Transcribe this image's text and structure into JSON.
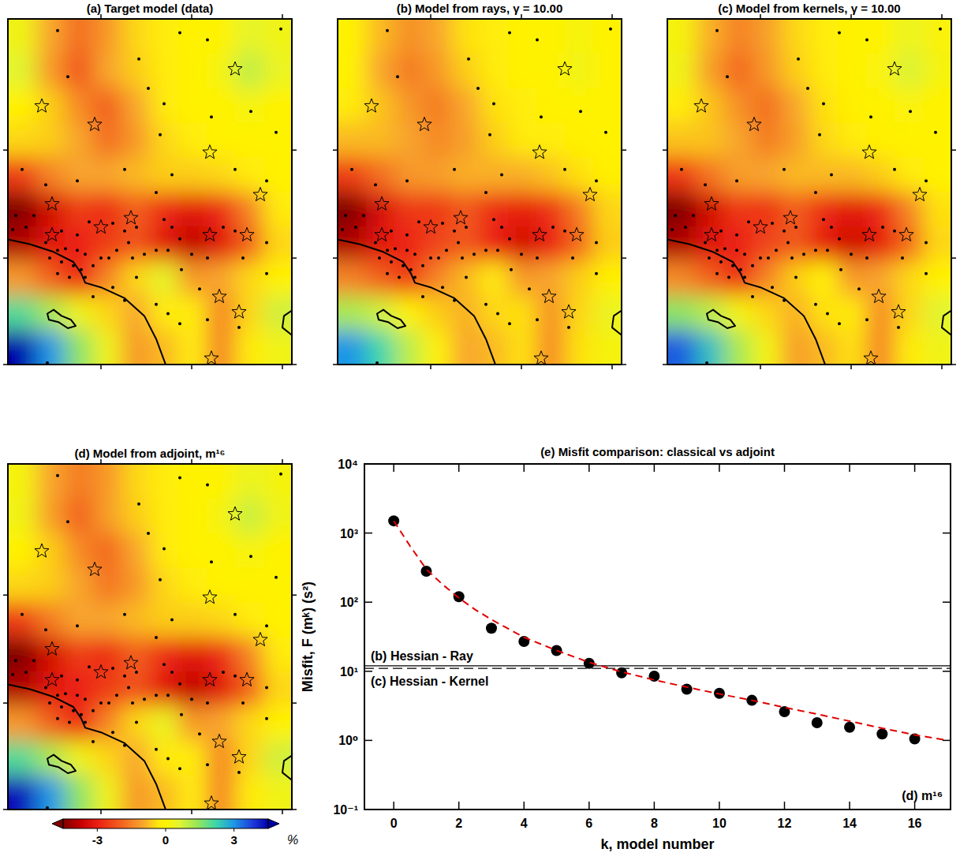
{
  "chart_data": [
    {
      "type": "heatmap",
      "title": "(a) Target model (data)",
      "cells": [
        [
          0.3,
          -1.0,
          -1.8,
          -1.2,
          -0.5,
          -0.2,
          0,
          0,
          0.5,
          0.3
        ],
        [
          0.6,
          -1.2,
          -2.2,
          -1.0,
          -0.6,
          -0.3,
          0,
          0.2,
          1.0,
          0.4
        ],
        [
          0,
          -0.6,
          -1.4,
          -2.0,
          -1.0,
          -0.3,
          0,
          0,
          0.2,
          0
        ],
        [
          -0.5,
          -0.6,
          -1.0,
          -1.8,
          -1.2,
          -0.5,
          -0.2,
          0,
          0,
          0
        ],
        [
          -2.5,
          -1.5,
          -1.0,
          -1.0,
          -0.8,
          -0.6,
          -0.6,
          -0.5,
          -0.3,
          0
        ],
        [
          -4.5,
          -3.5,
          -2.5,
          -2.8,
          -2.0,
          -2.8,
          -3.2,
          -2.8,
          -1.5,
          -0.3
        ],
        [
          -4.0,
          -3.2,
          -3.0,
          -2.5,
          -2.2,
          -3.2,
          -3.8,
          -3.2,
          -2.0,
          -0.5
        ],
        [
          -1.2,
          -2.0,
          -3.0,
          -1.5,
          -0.5,
          0.5,
          -1.2,
          -1.0,
          -0.5,
          0
        ],
        [
          2.0,
          1.2,
          0.3,
          -0.5,
          -1.0,
          -0.3,
          -0.2,
          -1.5,
          -0.5,
          0.8
        ],
        [
          4.5,
          3.0,
          1.5,
          0.3,
          -1.2,
          -0.8,
          -0.3,
          -1.5,
          -0.3,
          0.3
        ]
      ]
    },
    {
      "type": "heatmap",
      "title": "(b) Model from rays, γ = 10.00",
      "cells": [
        [
          0,
          -0.8,
          -1.3,
          -1.0,
          -0.4,
          -0.2,
          0,
          0,
          0.2,
          0
        ],
        [
          0,
          -1.0,
          -1.6,
          -1.2,
          -0.6,
          -0.3,
          0,
          0,
          0.3,
          0
        ],
        [
          -0.3,
          -0.7,
          -1.2,
          -1.6,
          -1.0,
          -0.4,
          -0.2,
          0,
          0,
          0
        ],
        [
          -0.8,
          -0.8,
          -1.0,
          -1.4,
          -1.1,
          -0.6,
          -0.3,
          -0.2,
          -0.1,
          0
        ],
        [
          -2.5,
          -1.8,
          -1.2,
          -1.1,
          -0.9,
          -0.9,
          -0.9,
          -0.7,
          -0.4,
          -0.1
        ],
        [
          -4.5,
          -3.4,
          -2.6,
          -2.6,
          -2.1,
          -2.8,
          -3.1,
          -2.7,
          -1.6,
          -0.5
        ],
        [
          -4.0,
          -3.2,
          -2.9,
          -2.4,
          -2.1,
          -3.0,
          -3.5,
          -3.0,
          -1.9,
          -0.6
        ],
        [
          -1.5,
          -2.0,
          -2.6,
          -1.5,
          -0.8,
          -0.3,
          -1.2,
          -1.0,
          -0.6,
          -0.1
        ],
        [
          1.2,
          0.8,
          0,
          -0.6,
          -0.9,
          -0.5,
          -0.4,
          -1.3,
          -0.5,
          0.4
        ],
        [
          3.0,
          2.2,
          1.0,
          0,
          -1.0,
          -0.8,
          -0.4,
          -1.4,
          -0.4,
          0.2
        ]
      ]
    },
    {
      "type": "heatmap",
      "title": "(c) Model from kernels, γ = 10.00",
      "cells": [
        [
          0.2,
          -0.9,
          -1.5,
          -1.1,
          -0.5,
          -0.2,
          0,
          0,
          0.4,
          0.1
        ],
        [
          0.3,
          -1.1,
          -1.9,
          -1.2,
          -0.6,
          -0.3,
          0,
          0.1,
          0.7,
          0.2
        ],
        [
          -0.2,
          -0.7,
          -1.3,
          -1.8,
          -1.0,
          -0.4,
          -0.1,
          0,
          0.1,
          0
        ],
        [
          -0.7,
          -0.7,
          -1.0,
          -1.6,
          -1.1,
          -0.5,
          -0.3,
          -0.1,
          0,
          0
        ],
        [
          -2.6,
          -1.7,
          -1.1,
          -1.0,
          -0.8,
          -0.8,
          -0.8,
          -0.6,
          -0.3,
          0
        ],
        [
          -4.5,
          -3.5,
          -2.6,
          -2.7,
          -2.0,
          -2.8,
          -3.2,
          -2.8,
          -1.5,
          -0.4
        ],
        [
          -4.0,
          -3.2,
          -3.0,
          -2.4,
          -2.1,
          -3.1,
          -3.6,
          -3.1,
          -1.9,
          -0.5
        ],
        [
          -1.4,
          -2.0,
          -2.8,
          -1.5,
          -0.6,
          0,
          -1.2,
          -1.0,
          -0.5,
          0
        ],
        [
          1.5,
          1.0,
          0.2,
          -0.5,
          -0.9,
          -0.4,
          -0.3,
          -1.4,
          -0.5,
          0.6
        ],
        [
          3.5,
          2.5,
          1.2,
          0.2,
          -1.1,
          -0.8,
          -0.4,
          -1.5,
          -0.3,
          0.3
        ]
      ]
    },
    {
      "type": "heatmap",
      "title": "(d) Model from adjoint, m¹⁶",
      "cells": [
        [
          0.2,
          -1.0,
          -1.6,
          -1.2,
          -0.5,
          -0.2,
          0,
          0,
          0.4,
          0.2
        ],
        [
          0.3,
          -1.1,
          -2.0,
          -1.1,
          -0.6,
          -0.3,
          0,
          0.2,
          0.9,
          0.3
        ],
        [
          0,
          -0.6,
          -1.4,
          -1.9,
          -1.0,
          -0.3,
          0,
          0,
          0.2,
          0
        ],
        [
          -0.5,
          -0.6,
          -1.0,
          -1.7,
          -1.2,
          -0.5,
          -0.2,
          0,
          0,
          0
        ],
        [
          -2.5,
          -1.6,
          -1.0,
          -1.0,
          -0.8,
          -0.6,
          -0.6,
          -0.5,
          -0.3,
          0
        ],
        [
          -4.5,
          -3.5,
          -2.5,
          -2.8,
          -2.0,
          -2.8,
          -3.2,
          -2.8,
          -1.5,
          -0.3
        ],
        [
          -4.0,
          -3.2,
          -3.0,
          -2.5,
          -2.2,
          -3.2,
          -3.8,
          -3.2,
          -2.0,
          -0.5
        ],
        [
          -1.2,
          -2.0,
          -3.0,
          -1.5,
          -0.5,
          0.4,
          -1.2,
          -1.0,
          -0.5,
          0
        ],
        [
          2.0,
          1.2,
          0.3,
          -0.5,
          -1.0,
          -0.3,
          -0.2,
          -1.5,
          -0.5,
          0.8
        ],
        [
          4.3,
          3.0,
          1.5,
          0.3,
          -1.2,
          -0.8,
          -0.3,
          -1.5,
          -0.3,
          0.3
        ]
      ]
    },
    {
      "type": "scatter",
      "title": "(e) Misfit comparison: classical vs adjoint",
      "xlabel": "k, model number",
      "ylabel": "Misfit,  F (mᵏ)  (s²)",
      "log": "y",
      "grid": false,
      "xlim": [
        -0.9,
        17.1
      ],
      "xticks": [
        0,
        2,
        4,
        6,
        8,
        10,
        12,
        14,
        16
      ],
      "ylim": [
        0.1,
        10000
      ],
      "yticks": [
        {
          "value": 0.1,
          "label": "10⁻¹"
        },
        {
          "value": 1,
          "label": "10⁰"
        },
        {
          "value": 10,
          "label": "10¹"
        },
        {
          "value": 100,
          "label": "10²"
        },
        {
          "value": 1000,
          "label": "10³"
        },
        {
          "value": 10000,
          "label": "10⁴"
        }
      ],
      "x": [
        0,
        1,
        2,
        3,
        4,
        5,
        6,
        7,
        8,
        9,
        10,
        11,
        12,
        13,
        14,
        15,
        16
      ],
      "series": [
        {
          "type": "scatter",
          "marker": "circle",
          "color": "#000000",
          "values": [
            1500,
            280,
            120,
            42,
            27,
            20,
            13,
            9.5,
            8.5,
            5.5,
            4.8,
            3.8,
            2.6,
            1.8,
            1.55,
            1.24,
            1.05
          ]
        },
        {
          "type": "line",
          "line_style": "dashed",
          "color": "#e00000",
          "x": [
            0,
            0.5,
            1,
            1.5,
            2,
            2.5,
            3,
            4,
            5,
            6,
            7,
            8,
            9,
            10,
            11,
            12,
            13,
            14,
            15,
            16,
            17
          ],
          "values": [
            1500,
            650,
            300,
            180,
            115,
            78,
            56,
            31,
            20,
            13.5,
            9.8,
            7.5,
            5.9,
            4.7,
            3.8,
            3.0,
            2.4,
            1.9,
            1.5,
            1.2,
            1.0
          ]
        }
      ],
      "reference_lines": [
        {
          "label": "(b) Hessian - Ray",
          "value": 12,
          "line_style": "solid"
        },
        {
          "label": "(c) Hessian - Kernel",
          "value": 11,
          "line_style": "dashed"
        }
      ],
      "annotations": [
        "(d) m¹⁶"
      ]
    }
  ],
  "map": {
    "xlim": [
      0,
      360
    ],
    "ylim": [
      0,
      448
    ],
    "xticks": [
      118,
      233,
      348
    ],
    "yticks": [
      0,
      138,
      278
    ],
    "tick_labels": false,
    "stations": {
      "x": [
        63,
        166,
        218,
        253,
        346,
        76,
        178,
        198,
        258,
        308,
        340,
        193,
        288,
        328,
        208,
        148,
        18,
        88,
        48,
        188,
        33,
        10,
        6,
        23,
        68,
        88,
        103,
        133,
        148,
        163,
        198,
        208,
        218,
        273,
        288,
        328,
        48,
        63,
        73,
        88,
        98,
        53,
        68,
        83,
        93,
        63,
        78,
        98,
        108,
        118,
        128,
        138,
        153,
        158,
        173,
        188,
        203,
        233,
        253,
        298,
        220,
        108,
        133,
        148,
        163,
        188,
        203,
        218,
        243,
        253,
        293,
        328,
        50
      ],
      "y": [
        433,
        396,
        430,
        421,
        435,
        373,
        358,
        338,
        321,
        328,
        301,
        298,
        253,
        238,
        246,
        253,
        253,
        238,
        233,
        223,
        193,
        193,
        175,
        178,
        173,
        168,
        185,
        183,
        173,
        178,
        188,
        178,
        163,
        178,
        173,
        158,
        158,
        148,
        150,
        148,
        143,
        138,
        133,
        128,
        123,
        118,
        113,
        113,
        128,
        138,
        138,
        148,
        158,
        138,
        143,
        148,
        148,
        143,
        138,
        138,
        123,
        88,
        100,
        83,
        113,
        78,
        66,
        53,
        98,
        58,
        48,
        118,
        2
      ]
    },
    "sources": {
      "x": [
        288,
        43,
        110,
        256,
        320,
        56,
        56,
        118,
        156,
        256,
        303,
        268,
        293,
        258
      ],
      "y": [
        383,
        335,
        311,
        275,
        220,
        208,
        168,
        178,
        190,
        168,
        168,
        88,
        68,
        8
      ]
    },
    "coastline": {
      "x": [
        0,
        28,
        58,
        83,
        93,
        98,
        118,
        148,
        173,
        188,
        200
      ],
      "y": [
        162,
        156,
        146,
        133,
        118,
        106,
        100,
        86,
        63,
        33,
        0
      ]
    },
    "island": {
      "x": [
        50,
        58,
        68,
        80,
        86,
        76,
        64,
        52
      ],
      "y": [
        66,
        71,
        63,
        58,
        50,
        47,
        55,
        58
      ]
    },
    "shore": {
      "x": [
        360,
        350,
        348,
        360
      ],
      "y": [
        70,
        63,
        48,
        38
      ]
    }
  },
  "colorbar": {
    "range": [
      -4.5,
      4.5
    ],
    "ticks": [
      -3,
      0,
      3
    ],
    "label": "%"
  }
}
